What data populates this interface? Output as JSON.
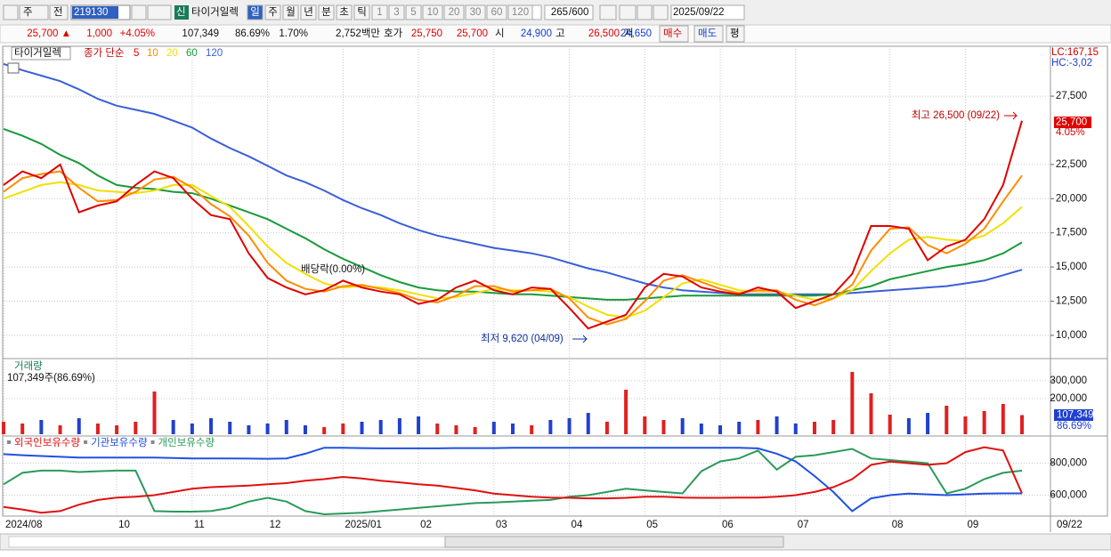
{
  "toolbar": {
    "period": "주",
    "prev": "전",
    "code": "219130",
    "new_badge": "신",
    "name": "타이거일렉",
    "intervals": [
      "일",
      "주",
      "월",
      "년",
      "분",
      "초",
      "틱"
    ],
    "minutes": [
      "1",
      "3",
      "5",
      "10",
      "20",
      "30",
      "60",
      "120"
    ],
    "count": "265",
    "count_max": "/600",
    "date": "2025/09/22"
  },
  "quote": {
    "price": "25,700 ▲",
    "change": "1,000",
    "change_rate": "+4.05%",
    "volume": "107,349",
    "volume_ratio": "86.69%",
    "turnover_rate": "1.70%",
    "amount": "2,752백만",
    "ask_label": "호가",
    "ask": "25,750",
    "bid": "25,700",
    "open_label": "시",
    "open": "24,900",
    "high_label": "고",
    "high": "26,500",
    "low_label": "저",
    "low": "24,650",
    "buy": "매수",
    "sell": "매도",
    "avg": "평"
  },
  "chart_data": [
    {
      "type": "line",
      "title": "타이거일렉",
      "legend_title": "종가 단순",
      "categories": [
        "2024/08",
        null,
        null,
        null,
        null,
        null,
        "10",
        null,
        null,
        null,
        "11",
        null,
        null,
        null,
        "12",
        null,
        null,
        null,
        "2025/01",
        null,
        null,
        null,
        "02",
        null,
        null,
        null,
        "03",
        null,
        null,
        null,
        "04",
        null,
        null,
        null,
        "05",
        null,
        null,
        null,
        "06",
        null,
        null,
        null,
        "07",
        null,
        null,
        null,
        null,
        "08",
        null,
        null,
        null,
        "09",
        null,
        null,
        null
      ],
      "series": [
        {
          "name": "5",
          "color": "#e00000",
          "values": [
            21000,
            22000,
            21500,
            22500,
            19000,
            19500,
            19800,
            21000,
            22000,
            21500,
            20000,
            18800,
            18500,
            16000,
            14200,
            13500,
            13000,
            13300,
            14000,
            13500,
            13200,
            13000,
            12300,
            12600,
            13500,
            14000,
            13300,
            13000,
            13500,
            13400,
            12000,
            10500,
            11000,
            11500,
            13500,
            14500,
            14300,
            13500,
            13200,
            13000,
            13500,
            13200,
            12000,
            12500,
            13000,
            14500,
            18000,
            18000,
            17800,
            15500,
            16500,
            17000,
            18500,
            21000,
            25700
          ]
        },
        {
          "name": "10",
          "color": "#ff8c00",
          "values": [
            20500,
            21500,
            21800,
            22000,
            20800,
            19800,
            19900,
            20500,
            21400,
            21600,
            20800,
            19600,
            18700,
            17300,
            15300,
            14000,
            13400,
            13200,
            13600,
            13700,
            13400,
            13100,
            12600,
            12400,
            12900,
            13600,
            13600,
            13200,
            13300,
            13400,
            12700,
            11300,
            10800,
            11200,
            12500,
            14000,
            14400,
            13900,
            13400,
            13100,
            13300,
            13300,
            12600,
            12200,
            12700,
            13700,
            16200,
            17800,
            17900,
            16600,
            16000,
            16700,
            17800,
            19800,
            21700
          ]
        },
        {
          "name": "20",
          "color": "#f0e000",
          "values": [
            20000,
            20500,
            21000,
            21200,
            21000,
            20600,
            20500,
            20400,
            20600,
            21000,
            21000,
            20200,
            19400,
            18000,
            16500,
            15300,
            14500,
            13800,
            13500,
            13600,
            13500,
            13300,
            13000,
            12700,
            12800,
            13100,
            13400,
            13300,
            13300,
            13200,
            12800,
            12100,
            11500,
            11300,
            11800,
            12800,
            13800,
            14100,
            13700,
            13300,
            13200,
            13200,
            12900,
            12600,
            12700,
            13300,
            14700,
            16000,
            17000,
            17200,
            17000,
            16900,
            17300,
            18200,
            19400
          ]
        },
        {
          "name": "60",
          "color": "#1a9a3a",
          "values": [
            25100,
            24600,
            24000,
            23200,
            22600,
            21700,
            21000,
            20800,
            20700,
            20500,
            20400,
            20000,
            19500,
            19000,
            18500,
            17800,
            17100,
            16300,
            15600,
            15000,
            14400,
            13900,
            13500,
            13300,
            13200,
            13200,
            13100,
            13000,
            13000,
            12900,
            12800,
            12700,
            12600,
            12600,
            12700,
            12800,
            12900,
            12900,
            12900,
            12900,
            12900,
            12900,
            12900,
            12900,
            13000,
            13300,
            13600,
            14100,
            14400,
            14700,
            15000,
            15200,
            15500,
            16000,
            16800
          ]
        },
        {
          "name": "120",
          "color": "#3a5fd8",
          "values": [
            29860,
            29400,
            29000,
            28600,
            28000,
            27300,
            26800,
            26500,
            26200,
            25700,
            25200,
            24400,
            23700,
            23100,
            22400,
            21700,
            21200,
            20600,
            19900,
            19300,
            18800,
            18200,
            17700,
            17300,
            17000,
            16700,
            16400,
            16200,
            16000,
            15700,
            15300,
            14900,
            14600,
            14200,
            13800,
            13500,
            13300,
            13200,
            13100,
            13000,
            13000,
            13000,
            13000,
            13000,
            13000,
            13100,
            13200,
            13300,
            13400,
            13500,
            13600,
            13800,
            14000,
            14400,
            14800
          ]
        }
      ],
      "ylim": [
        8300,
        31150
      ],
      "yticks": [
        {
          "value": 10000,
          "label": "10,000"
        },
        {
          "value": 12500,
          "label": "12,500"
        },
        {
          "value": 15000,
          "label": "15,000"
        },
        {
          "value": 17500,
          "label": "17,500"
        },
        {
          "value": 20000,
          "label": "20,000"
        },
        {
          "value": 22500,
          "label": "22,500"
        },
        {
          "value": 27500,
          "label": "27,500"
        }
      ],
      "grid": true,
      "lc_label": "LC:167,15",
      "hc_label": "HC:-3,02",
      "current_label": "25,700",
      "current_change": "4.05%",
      "annotations": [
        "최고 26,500 (09/22)",
        "최저 9,620 (04/09)",
        "배당락(0.00%)"
      ]
    },
    {
      "type": "bar",
      "title": "거래량",
      "subtitle": "107,349주(86.69%)",
      "values": [
        70000,
        60000,
        80000,
        50000,
        90000,
        60000,
        50000,
        70000,
        240000,
        80000,
        60000,
        90000,
        70000,
        50000,
        60000,
        80000,
        50000,
        40000,
        60000,
        70000,
        80000,
        90000,
        100000,
        60000,
        50000,
        40000,
        70000,
        60000,
        50000,
        80000,
        90000,
        120000,
        70000,
        250000,
        100000,
        80000,
        90000,
        60000,
        50000,
        70000,
        80000,
        100000,
        60000,
        70000,
        80000,
        350000,
        230000,
        110000,
        90000,
        120000,
        160000,
        100000,
        130000,
        170000,
        107349
      ],
      "ylim": [
        0,
        400000
      ],
      "yticks": [
        {
          "value": 200000,
          "label": "200,000"
        },
        {
          "value": 300000,
          "label": "300,000"
        }
      ],
      "up_color": "#e02020",
      "down_color": "#2040d0",
      "current_label": "107,349",
      "current_ratio": "86.69%"
    },
    {
      "type": "line",
      "series": [
        {
          "name": "외국인보유수량",
          "color": "#e01010",
          "values": [
            526000,
            510000,
            490000,
            500000,
            540000,
            570000,
            585000,
            590000,
            600000,
            620000,
            640000,
            650000,
            655000,
            660000,
            668000,
            675000,
            690000,
            700000,
            714000,
            705000,
            690000,
            680000,
            668000,
            660000,
            645000,
            630000,
            610000,
            600000,
            590000,
            585000,
            583000,
            580000,
            580000,
            583000,
            590000,
            590000,
            585000,
            583000,
            583000,
            585000,
            585000,
            590000,
            600000,
            620000,
            650000,
            700000,
            790000,
            810000,
            800000,
            790000,
            800000,
            870000,
            900000,
            880000,
            611000
          ]
        },
        {
          "name": "기관보유수량",
          "color": "#2050e0",
          "values": [
            857000,
            850000,
            845000,
            840000,
            835000,
            835000,
            835000,
            835000,
            835000,
            833000,
            830000,
            830000,
            830000,
            829000,
            828000,
            830000,
            860000,
            897000,
            897000,
            895000,
            893000,
            893000,
            893000,
            893000,
            895000,
            895000,
            895000,
            897000,
            897000,
            897000,
            897000,
            897000,
            897000,
            897000,
            897000,
            897000,
            897000,
            897000,
            897000,
            897000,
            893000,
            860000,
            811000,
            720000,
            620000,
            500000,
            580000,
            600000,
            610000,
            605000,
            600000,
            605000,
            610000,
            611000,
            611000
          ]
        },
        {
          "name": "개인보유수량",
          "color": "#2a9a5a",
          "values": [
            668000,
            740000,
            754000,
            754000,
            745000,
            750000,
            754000,
            754000,
            500000,
            497000,
            497000,
            500000,
            520000,
            560000,
            583000,
            560000,
            500000,
            480000,
            485000,
            490000,
            500000,
            510000,
            520000,
            530000,
            540000,
            550000,
            554000,
            560000,
            565000,
            570000,
            590000,
            600000,
            620000,
            640000,
            630000,
            620000,
            611000,
            750000,
            811000,
            830000,
            880000,
            760000,
            840000,
            850000,
            870000,
            890000,
            830000,
            820000,
            810000,
            800000,
            611000,
            640000,
            700000,
            740000,
            754000
          ]
        }
      ],
      "ylim": [
        480000,
        954000
      ],
      "yticks": [
        {
          "value": 600000,
          "label": "600,000"
        },
        {
          "value": 800000,
          "label": "800,000"
        }
      ]
    }
  ],
  "x_end_label": "09/22"
}
